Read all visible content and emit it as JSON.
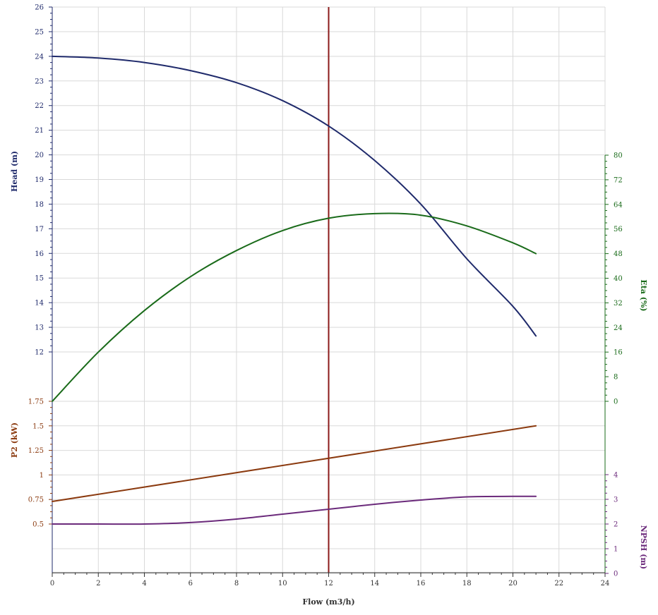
{
  "chart_data": {
    "type": "line",
    "xlabel": "Flow (m3/h)",
    "xlim": [
      0,
      24
    ],
    "x_ticks": [
      0,
      2,
      4,
      6,
      8,
      10,
      12,
      14,
      16,
      18,
      20,
      22,
      24
    ],
    "grid": true,
    "operating_point": {
      "x": 12,
      "color": "#8b1a1a"
    },
    "axes": {
      "head": {
        "label": "Head (m)",
        "side": "left",
        "color": "#1f2a6b",
        "ticks": [
          12,
          13,
          14,
          15,
          16,
          17,
          18,
          19,
          20,
          21,
          22,
          23,
          24,
          25,
          26
        ]
      },
      "p2": {
        "label": "P2 (kW)",
        "side": "left",
        "color": "#8b3a0f",
        "ticks": [
          0.5,
          0.75,
          1,
          1.25,
          1.5,
          1.75
        ]
      },
      "eta": {
        "label": "Eta (%)",
        "side": "right",
        "color": "#1a6b1a",
        "ticks": [
          0,
          8,
          16,
          24,
          32,
          40,
          48,
          56,
          64,
          72,
          80
        ]
      },
      "npsh": {
        "label": "NPSH (m)",
        "side": "right",
        "color": "#6b2a7b",
        "ticks": [
          0,
          1,
          2,
          3,
          4
        ]
      }
    },
    "series": [
      {
        "axis": "head",
        "color": "#1f2a6b",
        "x": [
          0,
          2,
          4,
          6,
          8,
          10,
          12,
          14,
          16,
          18,
          20,
          21
        ],
        "y": [
          24.0,
          23.93,
          23.75,
          23.42,
          22.93,
          22.2,
          21.17,
          19.77,
          18.0,
          15.78,
          13.85,
          12.65
        ]
      },
      {
        "axis": "eta",
        "color": "#1a6b1a",
        "x": [
          0,
          2,
          4,
          6,
          8,
          10,
          12,
          14,
          16,
          18,
          20,
          21
        ],
        "y": [
          0,
          16,
          29.5,
          40.5,
          49,
          55.5,
          59.5,
          61,
          60.5,
          57,
          51.5,
          48
        ]
      },
      {
        "axis": "p2",
        "color": "#8b3a0f",
        "x": [
          0,
          21
        ],
        "y": [
          0.73,
          1.5
        ]
      },
      {
        "axis": "npsh",
        "color": "#6b2a7b",
        "x": [
          0,
          2,
          4,
          6,
          8,
          10,
          12,
          14,
          16,
          18,
          20,
          21
        ],
        "y": [
          2.0,
          2.0,
          2.0,
          2.06,
          2.2,
          2.4,
          2.6,
          2.8,
          2.97,
          3.1,
          3.12,
          3.12
        ]
      }
    ]
  }
}
